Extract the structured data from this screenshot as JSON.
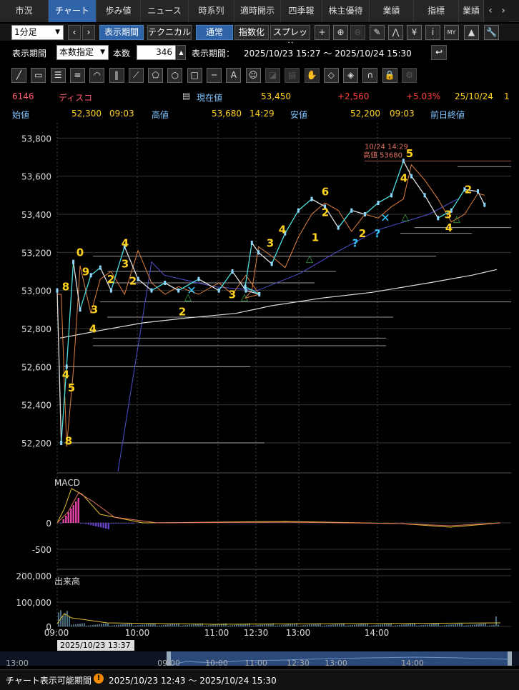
{
  "tabs": [
    "市況",
    "チャート",
    "歩み値",
    "ニュース",
    "時系列",
    "適時開示",
    "四季報",
    "株主優待",
    "業績",
    "指標",
    "業績"
  ],
  "tab_active": 1,
  "toolbar1": {
    "interval": "1分足",
    "period_btn": "表示期間",
    "tech_btn": "テクニカル",
    "normal_btn": "通常",
    "index_btn": "指数化",
    "spread_btn": "スプレッド",
    "icons": [
      "plus-icon",
      "zoom-in-icon",
      "zoom-out-icon",
      "pencil-icon",
      "pattern-icon",
      "yen-icon",
      "info-icon",
      "my-icon",
      "area-chart-icon",
      "wrench-icon"
    ],
    "glyphs": [
      "+",
      "⊕",
      "⊖",
      "✎",
      "⋀",
      "¥",
      "i",
      "MY",
      "▲",
      "🔧"
    ]
  },
  "toolbar2": {
    "period_label": "表示期間",
    "period_select": "本数指定",
    "count_label": "本数",
    "count_value": "346",
    "range_label": "表示期間：",
    "range_value": "2025/10/23 15:27 ～ 2025/10/24 15:30"
  },
  "drawtools": {
    "names": [
      "trendline-icon",
      "ruler-icon",
      "hlines-icon",
      "hlines2-icon",
      "fan-icon",
      "vlines-icon",
      "fan2-icon",
      "pentagon-icon",
      "circle-icon",
      "rect-icon",
      "hline-icon",
      "text-tool-icon",
      "icon-tool-icon",
      "d1-icon",
      "d2-icon",
      "d3-icon",
      "eraser-icon",
      "eraser2-icon",
      "magnet-icon",
      "lock-icon",
      "settings-icon"
    ],
    "glyphs": [
      "╱",
      "▭",
      "☰",
      "≡",
      "◠",
      "‖",
      "⟋",
      "⬠",
      "○",
      "□",
      "─",
      "A",
      "☺",
      "◪",
      "▤",
      "✋",
      "◇",
      "◈",
      "∩",
      "🔒",
      "⚙"
    ]
  },
  "stock": {
    "code": "6146",
    "name": "ディスコ",
    "price_label": "現在値",
    "price": "53,450",
    "change": "+2,560",
    "change_pct": "+5.03%",
    "date": "25/10/24",
    "extra": "1",
    "open_label": "始値",
    "open": "52,300",
    "open_time": "09:03",
    "high_label": "高値",
    "high": "53,680",
    "high_time": "14:29",
    "low_label": "安値",
    "low": "52,200",
    "low_time": "09:03",
    "prev_label": "前日終値"
  },
  "chart_data": {
    "type": "line",
    "price_axis": {
      "ticks": [
        53800,
        53600,
        53400,
        53200,
        53000,
        52800,
        52600,
        52400,
        52200
      ],
      "labels": [
        "53,800",
        "53,600",
        "53,400",
        "53,200",
        "53,000",
        "52,800",
        "52,600",
        "52,400",
        "52,200"
      ],
      "ylim": [
        52050,
        53880
      ]
    },
    "time_axis": {
      "labels": [
        "09:00",
        "10:00",
        "11:00",
        "12:30",
        "13:00",
        "14:00"
      ]
    },
    "price_series": {
      "name": "",
      "x": [
        "09:00",
        "09:03",
        "09:07",
        "09:12",
        "09:17",
        "09:25",
        "09:32",
        "09:40",
        "09:50",
        "10:00",
        "10:10",
        "10:20",
        "10:30",
        "10:45",
        "11:00",
        "11:10",
        "11:20",
        "11:30",
        "12:30",
        "12:35",
        "12:40",
        "12:50",
        "13:00",
        "13:10",
        "13:20",
        "13:30",
        "13:40",
        "13:50",
        "14:00",
        "14:10",
        "14:20",
        "14:29",
        "14:35",
        "14:45",
        "14:55",
        "15:05",
        "15:15",
        "15:25",
        "15:30"
      ],
      "values": [
        53000,
        52200,
        52600,
        53150,
        52900,
        53080,
        53120,
        53000,
        53230,
        53060,
        53000,
        53040,
        53000,
        53060,
        53000,
        53100,
        53000,
        52980,
        53020,
        53250,
        53200,
        53140,
        53300,
        53420,
        53480,
        53440,
        53330,
        53420,
        53400,
        53460,
        53500,
        53680,
        53600,
        53500,
        53380,
        53420,
        53530,
        53520,
        53450
      ]
    },
    "high_marker": {
      "date": "10/24 14:29",
      "label": "高値 53680"
    },
    "counts": [
      "8",
      "4",
      "5",
      "9",
      "0",
      "3",
      "4",
      "2",
      "3",
      "4",
      "2",
      "2",
      "3",
      "3",
      "4",
      "1",
      "6",
      "2",
      "2",
      "5",
      "4",
      "3",
      "2",
      "4",
      "8"
    ],
    "macd": {
      "label": "MACD",
      "ticks": [
        "0",
        "-500"
      ]
    },
    "volume": {
      "label": "出来高",
      "ticks": [
        "200,000",
        "100,000",
        "0"
      ]
    },
    "cursor_label": "2025/10/23 13:37",
    "nav_labels": [
      "13:00",
      "09:00",
      "10:00",
      "11:00",
      "12:30",
      "13:00",
      "14:00"
    ]
  },
  "status": {
    "label": "チャート表示可能期間",
    "value": "2025/10/23 12:43 ～ 2025/10/24 15:30"
  },
  "colors": {
    "accent": "#2f64a8",
    "up": "#ff4040",
    "gold": "#ffd21e",
    "cyan": "#30c8ff",
    "green": "#3aa64a"
  }
}
